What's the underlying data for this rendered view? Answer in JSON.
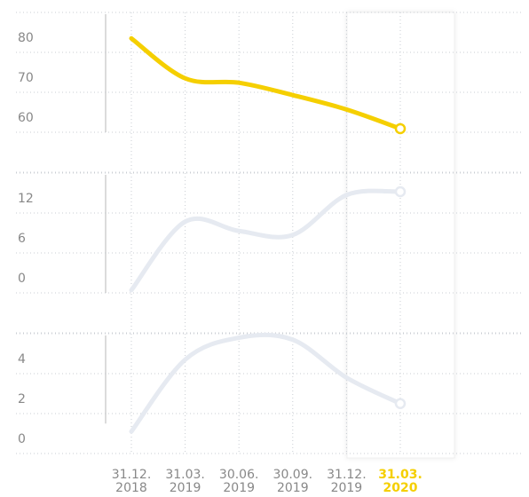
{
  "chart_data": [
    {
      "type": "line",
      "series": [
        {
          "color": "#f5cf00",
          "values": [
            83.5,
            73.5,
            72.4,
            69.3,
            65.7,
            60.9
          ]
        }
      ],
      "ylim": [
        50,
        90
      ],
      "yticks": [
        60,
        70,
        80
      ],
      "grid": true,
      "highlight": 5
    },
    {
      "type": "line",
      "series": [
        {
          "color": "#e6eaf1",
          "values": [
            0.4,
            10.7,
            9.3,
            8.7,
            14.7,
            15.2
          ]
        }
      ],
      "ylim": [
        -6,
        18
      ],
      "yticks": [
        0,
        6,
        12
      ],
      "grid": true,
      "highlight": 5
    },
    {
      "type": "line",
      "series": [
        {
          "color": "#e6eaf1",
          "values": [
            1.1,
            4.7,
            5.8,
            5.7,
            3.8,
            2.5
          ]
        }
      ],
      "ylim": [
        0,
        6
      ],
      "yticks": [
        0,
        2,
        4
      ],
      "grid": true,
      "highlight": 5,
      "categories": [
        [
          "31.12.",
          "2018"
        ],
        [
          "31.03.",
          "2019"
        ],
        [
          "30.06.",
          "2019"
        ],
        [
          "30.09.",
          "2019"
        ],
        [
          "31.12.",
          "2019"
        ],
        [
          "31.03.",
          "2020"
        ]
      ],
      "highlight_color": "#f5cf00"
    }
  ]
}
